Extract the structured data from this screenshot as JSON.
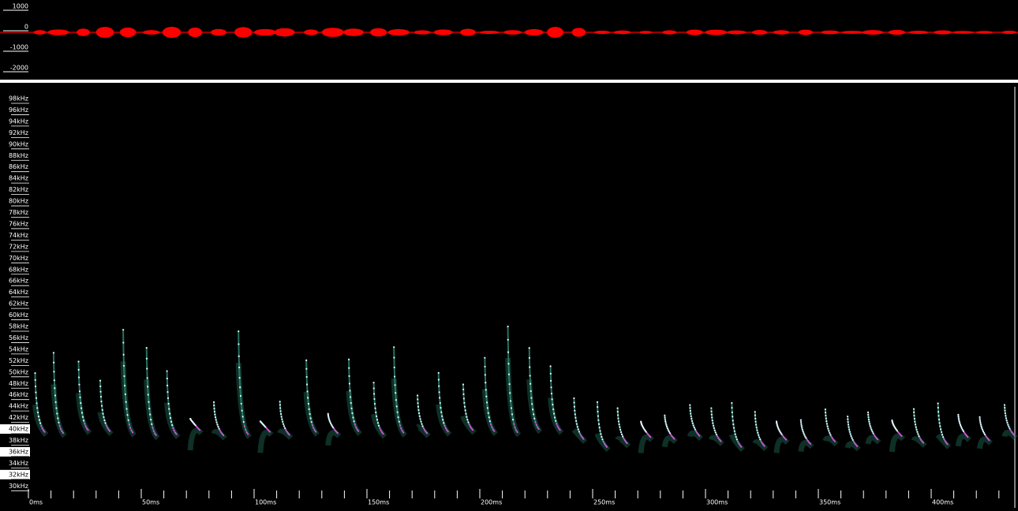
{
  "waveform": {
    "y_labels": [
      "1000",
      "0",
      "-1000",
      "-2000"
    ]
  },
  "spectrogram": {
    "frequency_labels": [
      "98kHz",
      "96kHz",
      "94kHz",
      "92kHz",
      "90kHz",
      "88kHz",
      "86kHz",
      "84kHz",
      "82kHz",
      "80kHz",
      "78kHz",
      "76kHz",
      "74kHz",
      "72kHz",
      "70kHz",
      "68kHz",
      "66kHz",
      "64kHz",
      "62kHz",
      "60kHz",
      "58kHz",
      "56kHz",
      "54kHz",
      "52kHz",
      "50kHz",
      "48kHz",
      "46kHz",
      "44kHz",
      "42kHz",
      "40kHz",
      "38kHz",
      "36kHz",
      "34kHz",
      "32kHz",
      "30kHz"
    ],
    "time_labels": [
      "0ms",
      "50ms",
      "100ms",
      "150ms",
      "200ms",
      "250ms",
      "300ms",
      "350ms",
      "400ms"
    ]
  }
}
